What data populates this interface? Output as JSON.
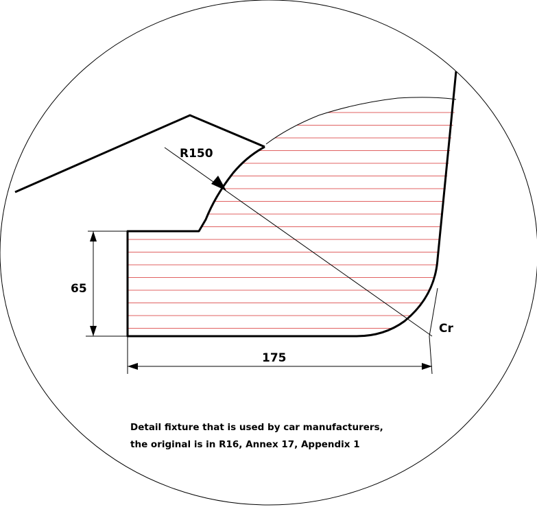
{
  "labels": {
    "radius": "R150",
    "height": "65",
    "width": "175",
    "corner": "Cr"
  },
  "caption": {
    "line1": "Detail fixture that is used by car manufacturers,",
    "line2": "the original is in R16, Annex 17, Appendix 1"
  },
  "colors": {
    "outline": "#000000",
    "hatch": "#e06060",
    "background": "#ffffff"
  }
}
